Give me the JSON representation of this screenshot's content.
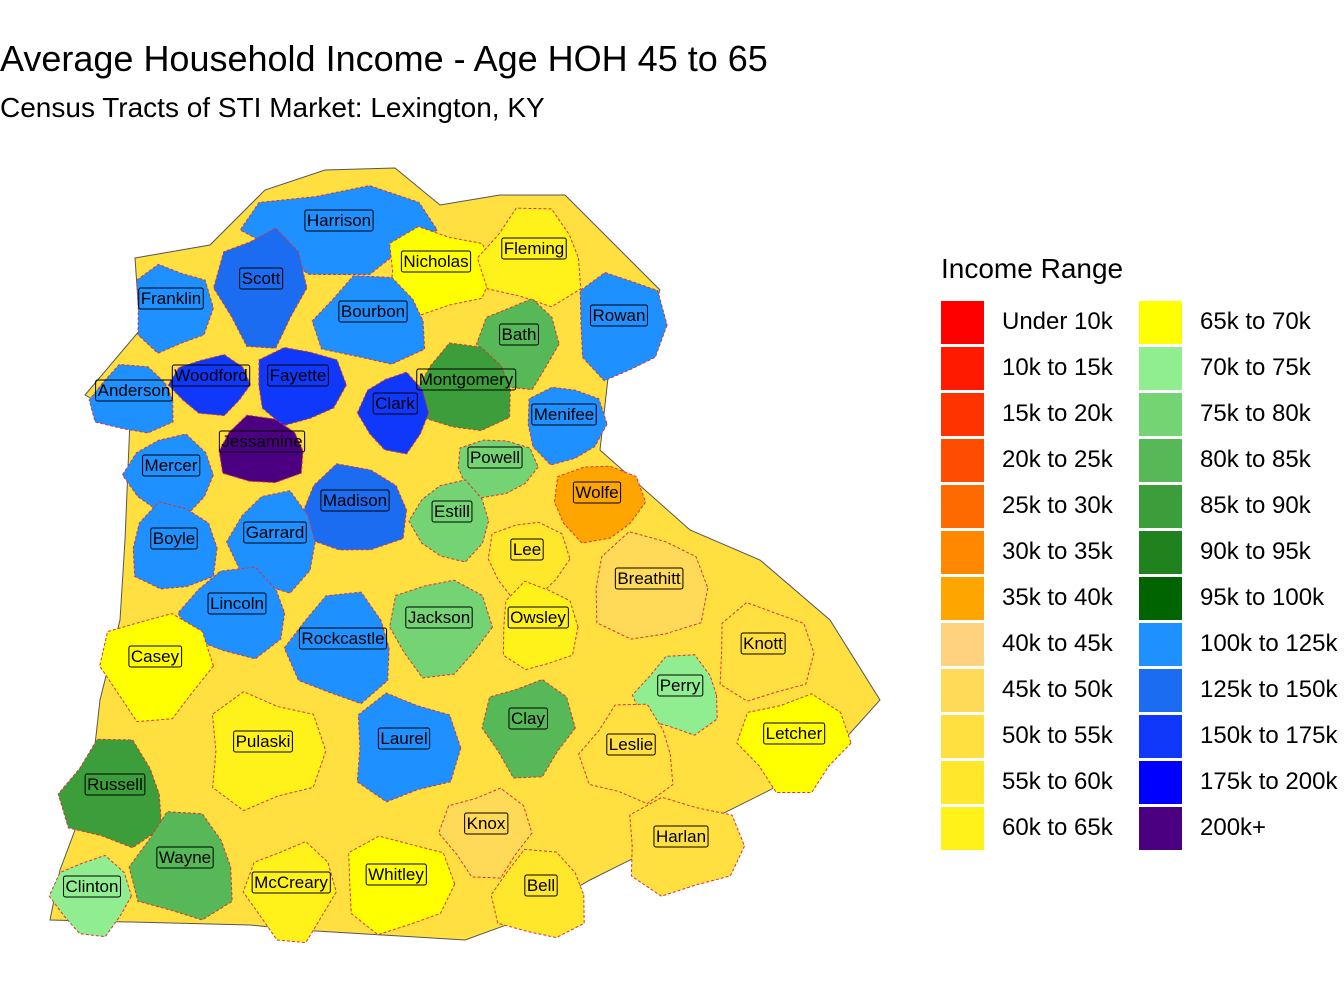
{
  "title": "Average Household Income - Age HOH 45 to 65",
  "subtitle": "Census Tracts of STI Market: Lexington, KY",
  "legend": {
    "title": "Income Range",
    "items": [
      {
        "label": "Under 10k",
        "color": "#FF0000"
      },
      {
        "label": "10k to 15k",
        "color": "#FF1A00"
      },
      {
        "label": "15k to 20k",
        "color": "#FF3300"
      },
      {
        "label": "20k to 25k",
        "color": "#FF4D00"
      },
      {
        "label": "25k to 30k",
        "color": "#FF6A00"
      },
      {
        "label": "30k to 35k",
        "color": "#FF8800"
      },
      {
        "label": "35k to 40k",
        "color": "#FFA500"
      },
      {
        "label": "40k to 45k",
        "color": "#FFD27F"
      },
      {
        "label": "45k to 50k",
        "color": "#FFD958"
      },
      {
        "label": "50k to 55k",
        "color": "#FFE040"
      },
      {
        "label": "55k to 60k",
        "color": "#FFE82B"
      },
      {
        "label": "60k to 65k",
        "color": "#FFF21A"
      },
      {
        "label": "65k to 70k",
        "color": "#FFFF00"
      },
      {
        "label": "70k to 75k",
        "color": "#90EE90"
      },
      {
        "label": "75k to 80k",
        "color": "#74D474"
      },
      {
        "label": "80k to 85k",
        "color": "#56B856"
      },
      {
        "label": "85k to 90k",
        "color": "#3B9E3B"
      },
      {
        "label": "90k to 95k",
        "color": "#1F821F"
      },
      {
        "label": "95k to 100k",
        "color": "#006400"
      },
      {
        "label": "100k to 125k",
        "color": "#1E90FF"
      },
      {
        "label": "125k to 150k",
        "color": "#1C6CF2"
      },
      {
        "label": "150k to 175k",
        "color": "#1038FA"
      },
      {
        "label": "175k to 200k",
        "color": "#0000FF"
      },
      {
        "label": "200k+",
        "color": "#4B0082"
      }
    ]
  },
  "counties": [
    {
      "name": "Harrison",
      "fill": "#1E90FF"
    },
    {
      "name": "Nicholas",
      "fill": "#FFFF00"
    },
    {
      "name": "Fleming",
      "fill": "#FFF21A"
    },
    {
      "name": "Scott",
      "fill": "#1C6CF2"
    },
    {
      "name": "Franklin",
      "fill": "#1E90FF"
    },
    {
      "name": "Bourbon",
      "fill": "#1E90FF"
    },
    {
      "name": "Bath",
      "fill": "#56B856"
    },
    {
      "name": "Rowan",
      "fill": "#1E90FF"
    },
    {
      "name": "Anderson",
      "fill": "#1E90FF"
    },
    {
      "name": "Woodford",
      "fill": "#1038FA"
    },
    {
      "name": "Fayette",
      "fill": "#1038FA"
    },
    {
      "name": "Montgomery",
      "fill": "#3B9E3B"
    },
    {
      "name": "Clark",
      "fill": "#1038FA"
    },
    {
      "name": "Menifee",
      "fill": "#1E90FF"
    },
    {
      "name": "Jessamine",
      "fill": "#4B0082"
    },
    {
      "name": "Mercer",
      "fill": "#1E90FF"
    },
    {
      "name": "Powell",
      "fill": "#74D474"
    },
    {
      "name": "Madison",
      "fill": "#1C6CF2"
    },
    {
      "name": "Estill",
      "fill": "#74D474"
    },
    {
      "name": "Wolfe",
      "fill": "#FFA500"
    },
    {
      "name": "Boyle",
      "fill": "#1E90FF"
    },
    {
      "name": "Garrard",
      "fill": "#1E90FF"
    },
    {
      "name": "Lee",
      "fill": "#FFE82B"
    },
    {
      "name": "Breathitt",
      "fill": "#FFD958"
    },
    {
      "name": "Lincoln",
      "fill": "#1E90FF"
    },
    {
      "name": "Jackson",
      "fill": "#74D474"
    },
    {
      "name": "Owsley",
      "fill": "#FFF21A"
    },
    {
      "name": "Rockcastle",
      "fill": "#1E90FF"
    },
    {
      "name": "Casey",
      "fill": "#FFFF00"
    },
    {
      "name": "Knott",
      "fill": "#FFE040"
    },
    {
      "name": "Perry",
      "fill": "#90EE90"
    },
    {
      "name": "Clay",
      "fill": "#56B856"
    },
    {
      "name": "Laurel",
      "fill": "#1E90FF"
    },
    {
      "name": "Leslie",
      "fill": "#FFE040"
    },
    {
      "name": "Letcher",
      "fill": "#FFFF00"
    },
    {
      "name": "Pulaski",
      "fill": "#FFF21A"
    },
    {
      "name": "Russell",
      "fill": "#3B9E3B"
    },
    {
      "name": "Knox",
      "fill": "#FFD958"
    },
    {
      "name": "Harlan",
      "fill": "#FFE040"
    },
    {
      "name": "Wayne",
      "fill": "#56B856"
    },
    {
      "name": "McCreary",
      "fill": "#FFF21A"
    },
    {
      "name": "Whitley",
      "fill": "#FFFF00"
    },
    {
      "name": "Bell",
      "fill": "#FFE82B"
    },
    {
      "name": "Clinton",
      "fill": "#90EE90"
    }
  ]
}
